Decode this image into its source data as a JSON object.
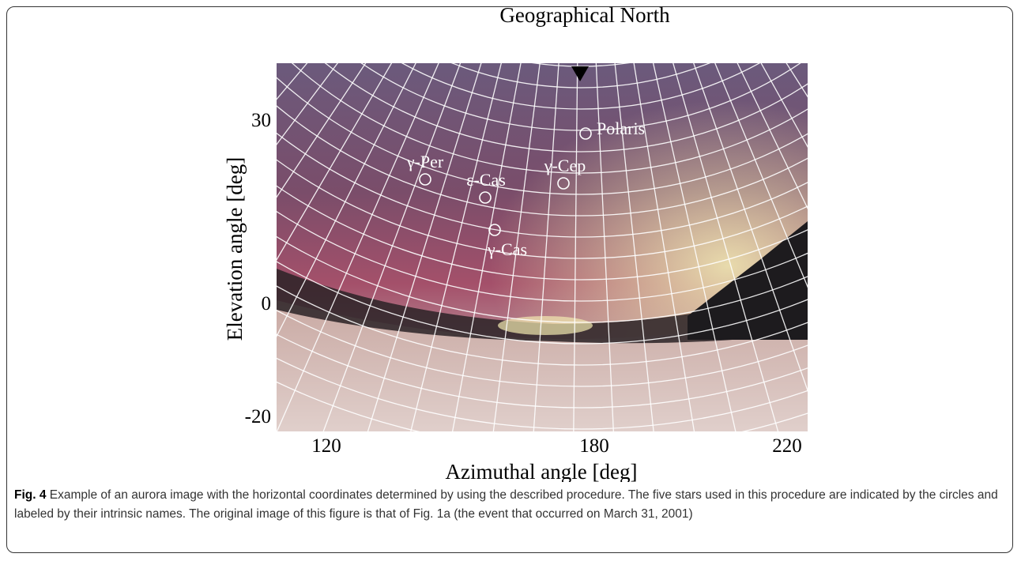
{
  "figure": {
    "top_label": "Geographical North",
    "y_axis_label": "Elevation angle [deg]",
    "x_axis_label": "Azimuthal angle [deg]",
    "y_ticks": [
      "30",
      "0",
      "-20"
    ],
    "x_ticks": [
      "120",
      "180",
      "220"
    ],
    "stars": [
      "γ-Per",
      "ε-Cas",
      "γ-Cas",
      "γ-Cep",
      "Polaris"
    ]
  },
  "caption": {
    "label": "Fig. 4",
    "text": "Example of an aurora image with the horizontal coordinates determined by using the described procedure. The five stars used in this procedure are indicated by the circles and labeled by their intrinsic names. The original image of this figure is that of Fig. 1a (the event that occurred on March 31, 2001)"
  }
}
